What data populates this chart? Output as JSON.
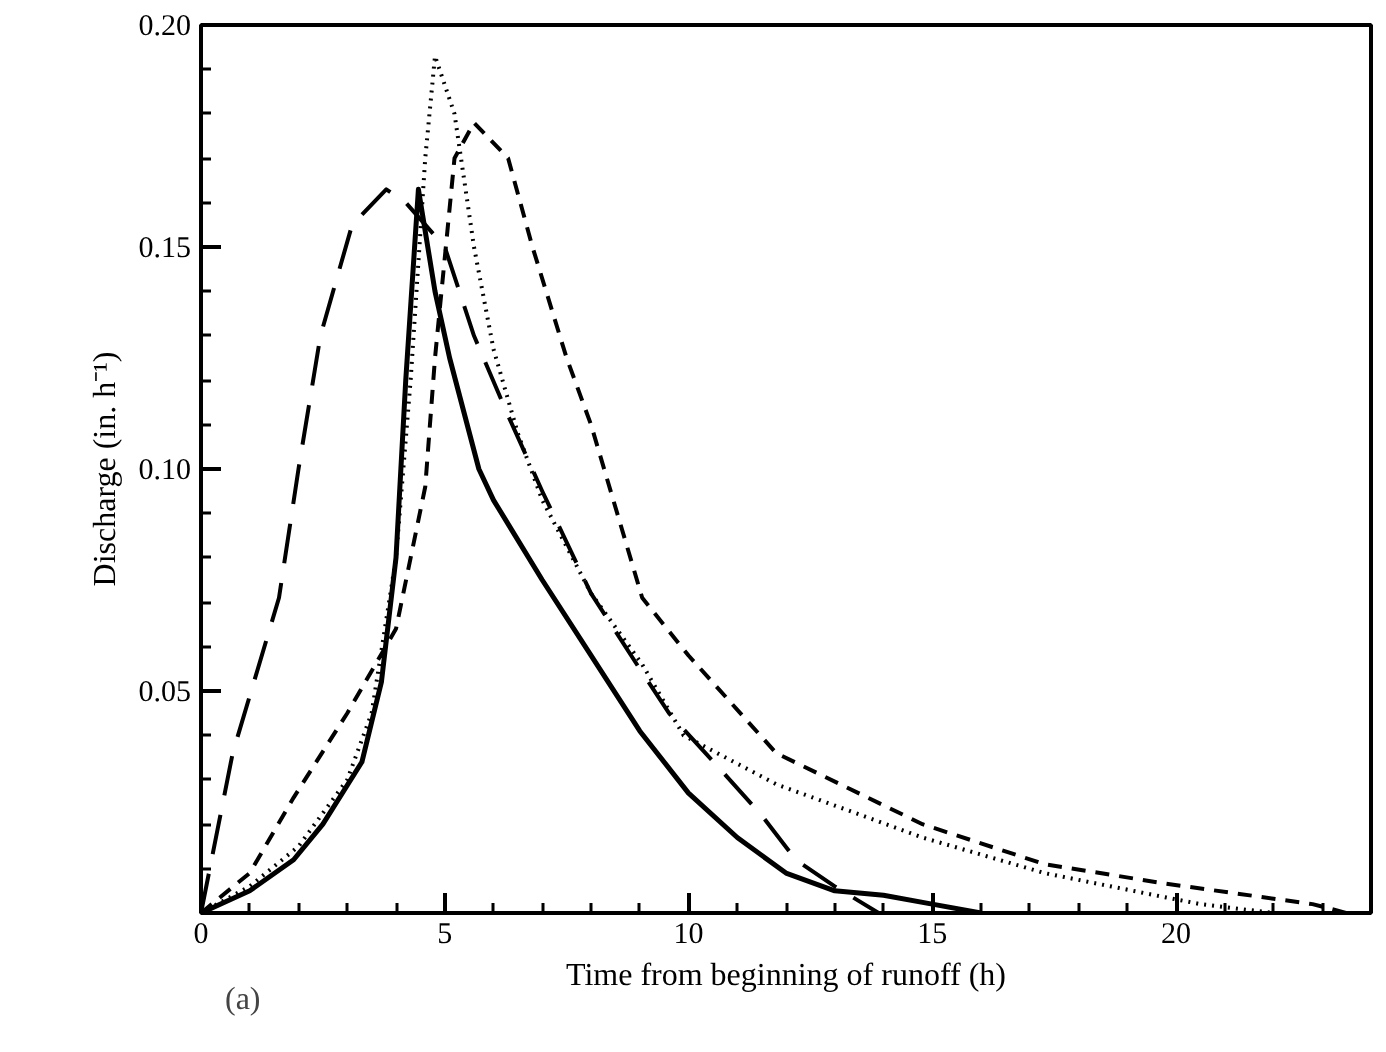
{
  "chart_data": {
    "type": "line",
    "xlabel": "Time from beginning of runoff (h)",
    "ylabel": "Discharge (in. h⁻¹)",
    "annotations": [
      "(a)"
    ],
    "xlim": [
      0,
      24
    ],
    "ylim": [
      0,
      0.2
    ],
    "xticks": [
      0,
      {
        "value": 1,
        "label": null
      },
      {
        "value": 2,
        "label": null
      },
      {
        "value": 3,
        "label": null
      },
      {
        "value": 4,
        "label": null
      },
      5,
      {
        "value": 6,
        "label": null
      },
      {
        "value": 7,
        "label": null
      },
      {
        "value": 8,
        "label": null
      },
      {
        "value": 9,
        "label": null
      },
      10,
      {
        "value": 11,
        "label": null
      },
      {
        "value": 12,
        "label": null
      },
      {
        "value": 13,
        "label": null
      },
      {
        "value": 14,
        "label": null
      },
      15,
      {
        "value": 16,
        "label": null
      },
      {
        "value": 17,
        "label": null
      },
      {
        "value": 18,
        "label": null
      },
      {
        "value": 19,
        "label": null
      },
      20,
      {
        "value": 21,
        "label": null
      },
      {
        "value": 22,
        "label": null
      },
      {
        "value": 23,
        "label": null
      }
    ],
    "yticks": [
      {
        "value": 0.01,
        "label": null
      },
      {
        "value": 0.02,
        "label": null
      },
      {
        "value": 0.03,
        "label": null
      },
      {
        "value": 0.04,
        "label": null
      },
      {
        "value": 0.05,
        "label": "0.05"
      },
      {
        "value": 0.06,
        "label": null
      },
      {
        "value": 0.07,
        "label": null
      },
      {
        "value": 0.08,
        "label": null
      },
      {
        "value": 0.09,
        "label": null
      },
      {
        "value": 0.1,
        "label": "0.10"
      },
      {
        "value": 0.11,
        "label": null
      },
      {
        "value": 0.12,
        "label": null
      },
      {
        "value": 0.13,
        "label": null
      },
      {
        "value": 0.14,
        "label": null
      },
      {
        "value": 0.15,
        "label": "0.15"
      },
      {
        "value": 0.16,
        "label": null
      },
      {
        "value": 0.17,
        "label": null
      },
      {
        "value": 0.18,
        "label": null
      },
      {
        "value": 0.19,
        "label": null
      },
      {
        "value": 0.2,
        "label": "0.20"
      }
    ],
    "grid": false,
    "marker": "none",
    "series": [
      {
        "color": "#000000",
        "line_style": "solid",
        "x": [
          0,
          1,
          1.9,
          2.5,
          3.3,
          3.7,
          4.0,
          4.2,
          4.46,
          4.8,
          5.1,
          5.7,
          6,
          7,
          8,
          9,
          10,
          11,
          12,
          13,
          14,
          15,
          16
        ],
        "values": [
          0,
          0.005,
          0.012,
          0.02,
          0.034,
          0.052,
          0.08,
          0.12,
          0.163,
          0.14,
          0.125,
          0.1,
          0.093,
          0.075,
          0.058,
          0.041,
          0.027,
          0.017,
          0.009,
          0.005,
          0.004,
          0.002,
          0
        ]
      },
      {
        "color": "#000000",
        "line_style": "dotted",
        "x": [
          0,
          1,
          2,
          3,
          3.5,
          4,
          4.3,
          4.6,
          4.8,
          5.2,
          5.6,
          6,
          6.5,
          7,
          8,
          9.05,
          9.9,
          11.8,
          14.8,
          17.3,
          19.8,
          20.5,
          22
        ],
        "values": [
          0,
          0.006,
          0.015,
          0.03,
          0.045,
          0.08,
          0.12,
          0.17,
          0.193,
          0.18,
          0.15,
          0.127,
          0.108,
          0.093,
          0.072,
          0.056,
          0.04,
          0.029,
          0.017,
          0.009,
          0.0035,
          0.002,
          0
        ]
      },
      {
        "color": "#000000",
        "line_style": "dashed",
        "x": [
          0,
          1,
          1.9,
          3,
          4.0,
          4.6,
          4.8,
          5.2,
          5.6,
          6.3,
          6.8,
          7.5,
          8,
          9.05,
          10,
          11.8,
          14.8,
          17.3,
          19.8,
          22.8,
          23.5
        ],
        "values": [
          0,
          0.009,
          0.026,
          0.045,
          0.064,
          0.096,
          0.125,
          0.17,
          0.178,
          0.17,
          0.15,
          0.125,
          0.11,
          0.071,
          0.058,
          0.036,
          0.02,
          0.011,
          0.0066,
          0.002,
          0
        ]
      },
      {
        "color": "#000000",
        "line_style": "dashed",
        "x": [
          0,
          0.65,
          1.6,
          2.0,
          2.45,
          3.1,
          3.8,
          4.2,
          5.0,
          5.6,
          6.3,
          7,
          8,
          9,
          9.6,
          10.6,
          11.5,
          12.2,
          13,
          13.9
        ],
        "values": [
          0,
          0.036,
          0.071,
          0.1,
          0.13,
          0.155,
          0.163,
          0.16,
          0.15,
          0.13,
          0.112,
          0.095,
          0.072,
          0.055,
          0.045,
          0.033,
          0.022,
          0.012,
          0.006,
          0
        ]
      }
    ]
  }
}
